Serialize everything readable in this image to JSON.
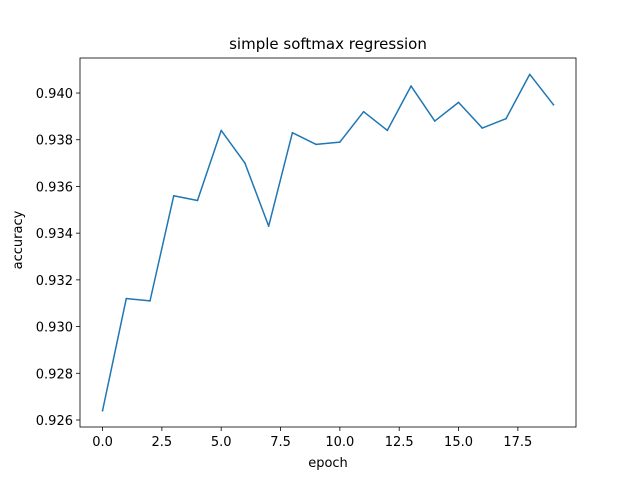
{
  "chart_data": {
    "type": "line",
    "title": "simple softmax regression",
    "xlabel": "epoch",
    "ylabel": "accuracy",
    "xlim": [
      -0.95,
      19.95
    ],
    "ylim": [
      0.9257,
      0.9415
    ],
    "x_ticks": [
      0.0,
      2.5,
      5.0,
      7.5,
      10.0,
      12.5,
      15.0,
      17.5
    ],
    "x_tick_labels": [
      "0.0",
      "2.5",
      "5.0",
      "7.5",
      "10.0",
      "12.5",
      "15.0",
      "17.5"
    ],
    "y_ticks": [
      0.926,
      0.928,
      0.93,
      0.932,
      0.934,
      0.936,
      0.938,
      0.94
    ],
    "y_tick_labels": [
      "0.926",
      "0.928",
      "0.930",
      "0.932",
      "0.934",
      "0.936",
      "0.938",
      "0.940"
    ],
    "grid": false,
    "series": [
      {
        "color": "#1f77b4",
        "x": [
          0,
          1,
          2,
          3,
          4,
          5,
          6,
          7,
          8,
          9,
          10,
          11,
          12,
          13,
          14,
          15,
          16,
          17,
          18,
          19
        ],
        "y": [
          0.9264,
          0.9312,
          0.9311,
          0.9356,
          0.9354,
          0.9384,
          0.937,
          0.9343,
          0.9383,
          0.9378,
          0.9379,
          0.9392,
          0.9384,
          0.9403,
          0.9388,
          0.9396,
          0.9385,
          0.9389,
          0.9408,
          0.9395
        ]
      }
    ]
  }
}
